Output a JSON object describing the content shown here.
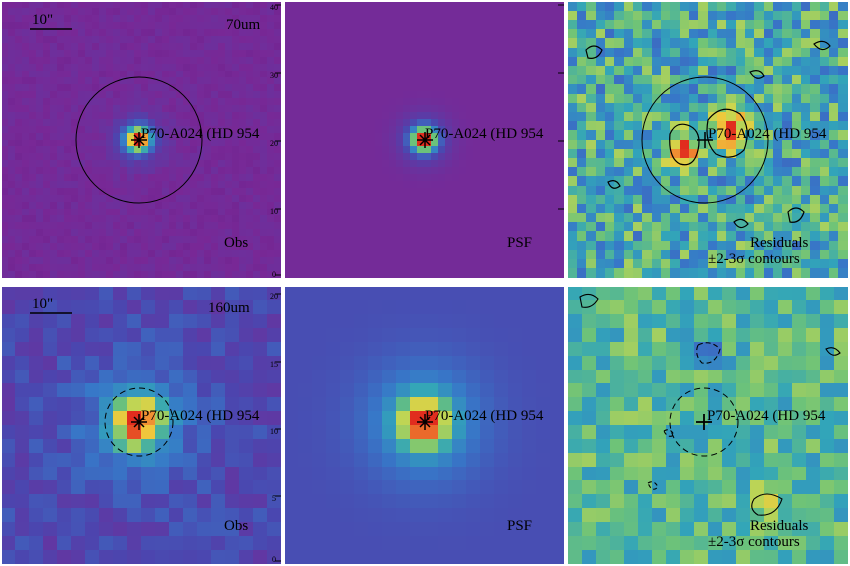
{
  "source_name": "P70-A024 (HD 954",
  "row_70": {
    "band": "70um",
    "scale_bar": "10\"",
    "obs_label": "Obs",
    "psf_label": "PSF",
    "residual_label_1": "Residuals",
    "residual_label_2": "±2-3σ contours",
    "tick_labels": [
      "40",
      "30",
      "20",
      "10",
      "0"
    ]
  },
  "row_160": {
    "band": "160um",
    "scale_bar": "10\"",
    "obs_label": "Obs",
    "psf_label": "PSF",
    "residual_label_1": "Residuals",
    "residual_label_2": "±2-3σ contours",
    "tick_labels": [
      "20",
      "15",
      "10",
      "5",
      "0"
    ]
  },
  "colors": {
    "background_purple": "#7a2a92",
    "background_blue": "#3b5ab5",
    "peak_red": "#e43a1f",
    "peak_orange": "#f3a33a",
    "peak_yellow": "#f0e44a",
    "mid_green": "#8ccd6a",
    "mid_teal": "#3aa7b4"
  },
  "icons": {
    "star_marker": "asterisk-cross-marker",
    "aperture": "circle-aperture"
  }
}
